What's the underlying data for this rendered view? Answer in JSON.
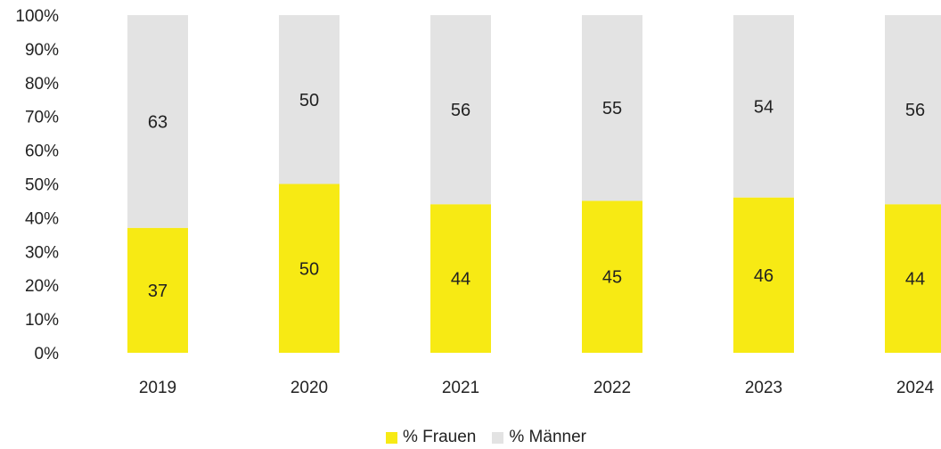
{
  "chart_data": {
    "type": "bar",
    "stacked": true,
    "categories": [
      "2019",
      "2020",
      "2021",
      "2022",
      "2023",
      "2024"
    ],
    "series": [
      {
        "name": "% Frauen",
        "values": [
          37,
          50,
          44,
          45,
          46,
          44
        ],
        "color": "#f7ea14"
      },
      {
        "name": "% Männer",
        "values": [
          63,
          50,
          56,
          55,
          54,
          56
        ],
        "color": "#e3e3e3"
      }
    ],
    "yticks": [
      "0%",
      "10%",
      "20%",
      "30%",
      "40%",
      "50%",
      "60%",
      "70%",
      "80%",
      "90%",
      "100%"
    ],
    "ylim": [
      0,
      100
    ],
    "grid": false,
    "legend_position": "bottom"
  }
}
